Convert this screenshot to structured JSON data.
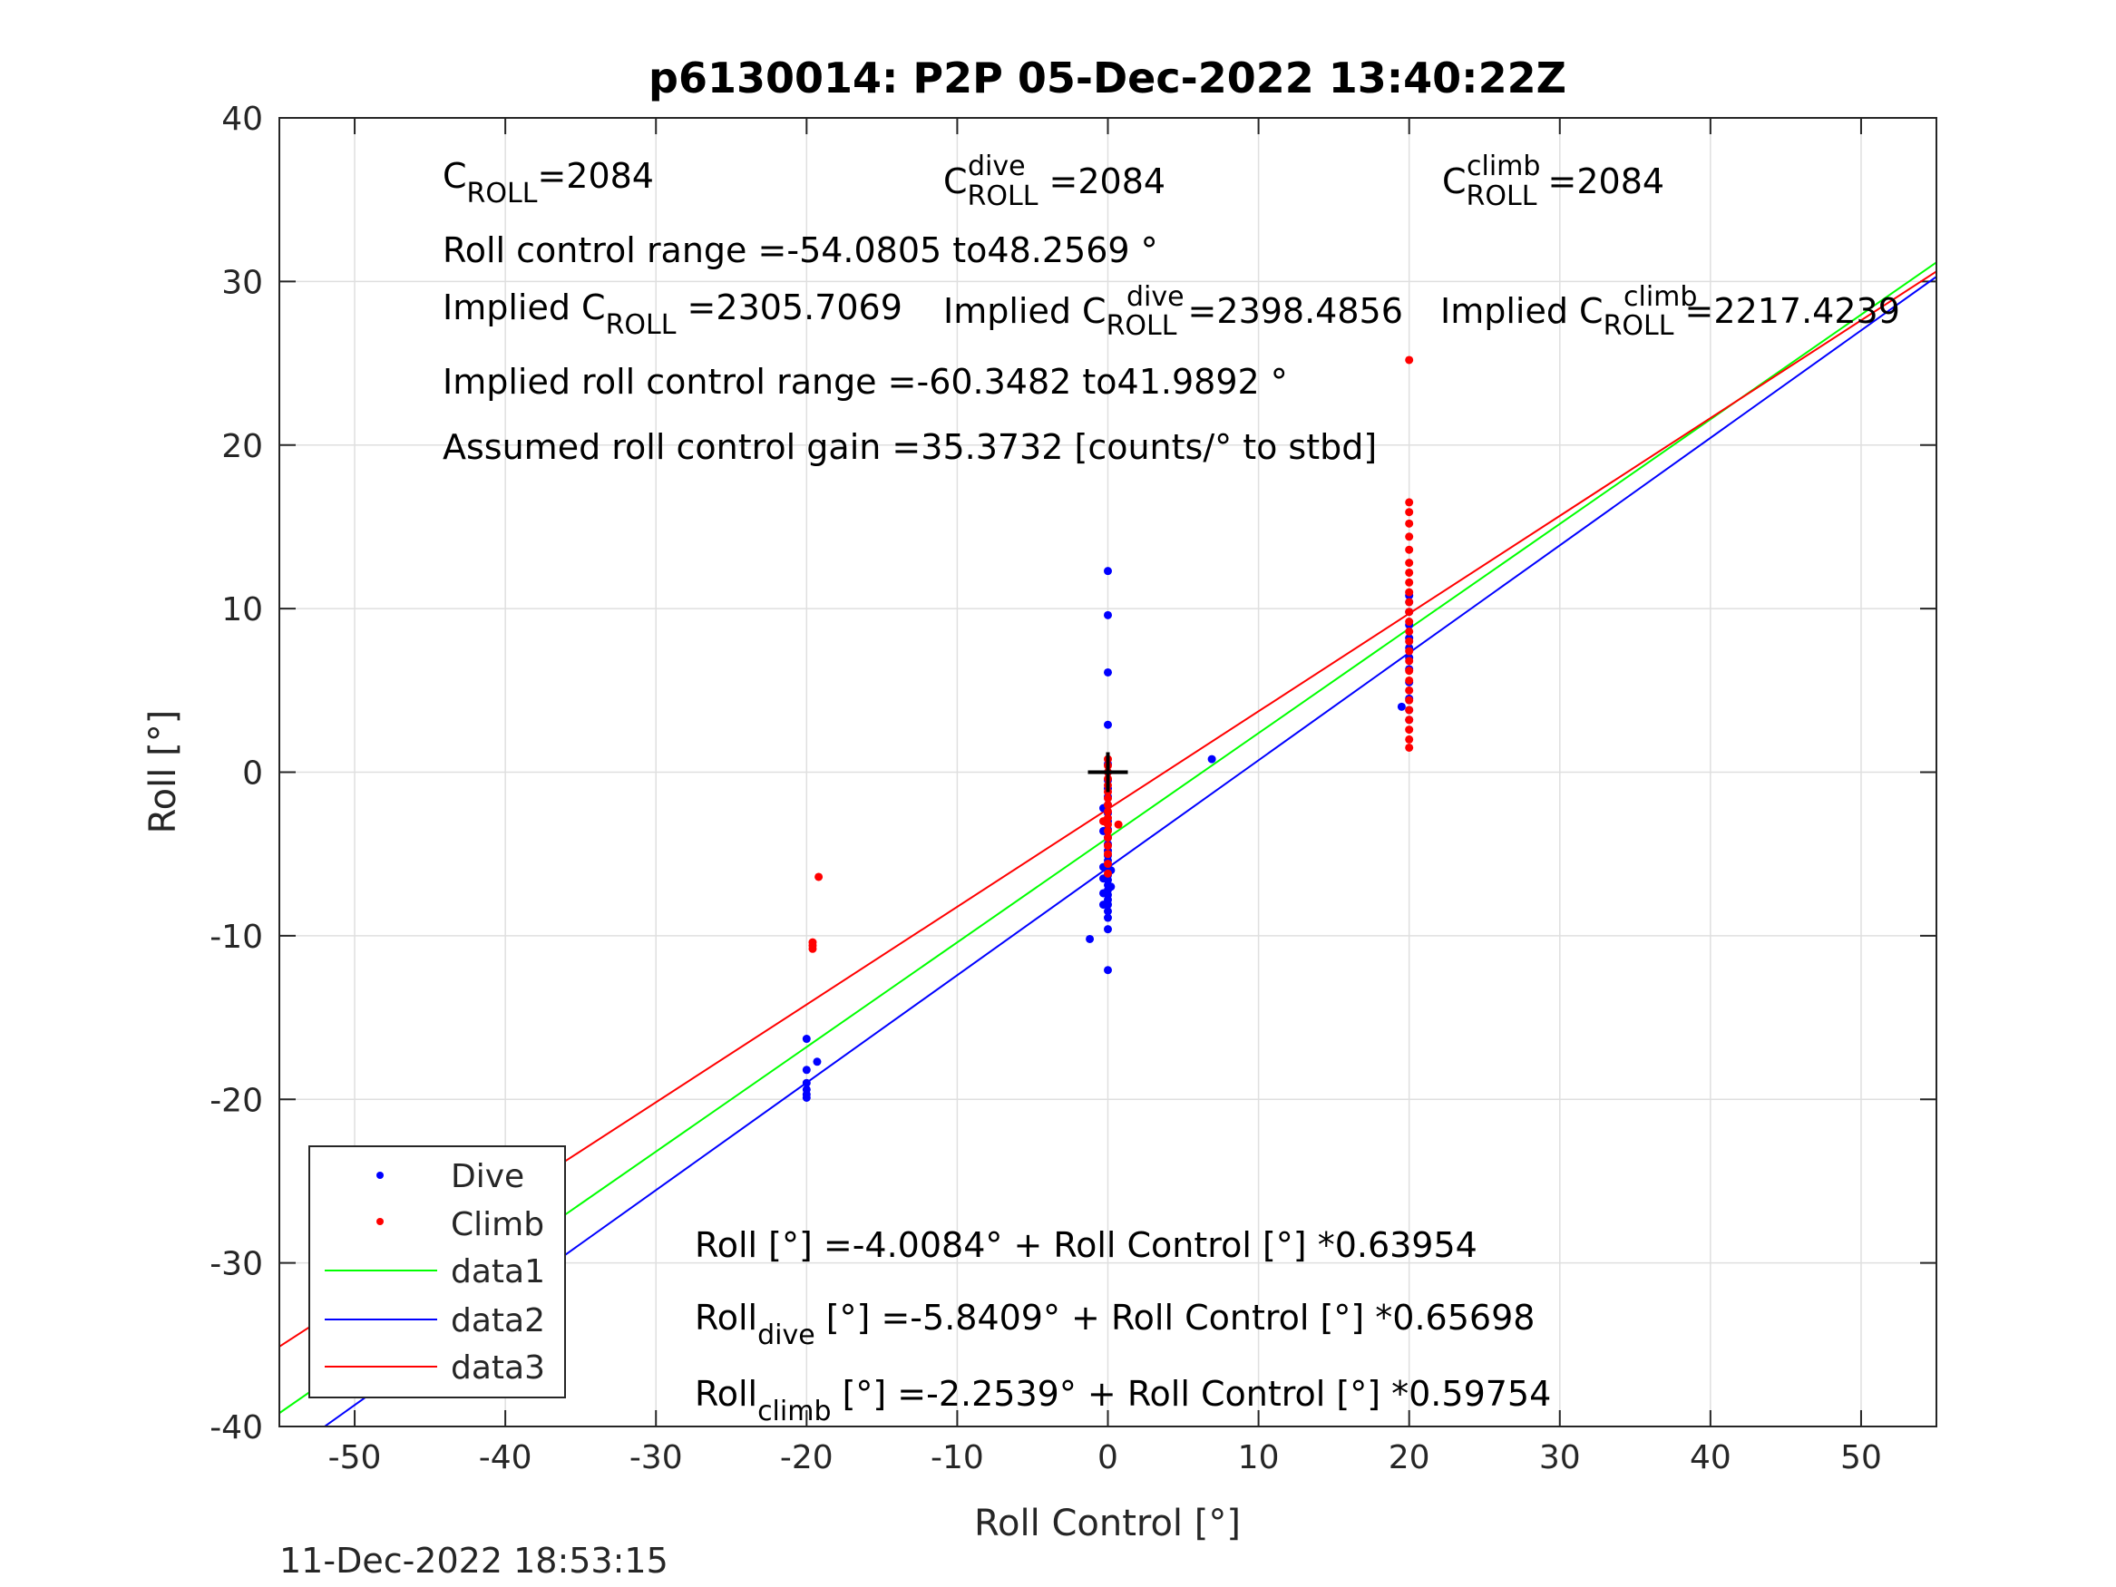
{
  "chart_data": {
    "type": "scatter",
    "title": "p6130014: P2P 05-Dec-2022 13:40:22Z",
    "xlabel": "Roll Control [°]",
    "ylabel": "Roll [°]",
    "xlim": [
      -55,
      55
    ],
    "ylim": [
      -40,
      40
    ],
    "xticks": [
      -50,
      -40,
      -30,
      -20,
      -10,
      0,
      10,
      20,
      30,
      40,
      50
    ],
    "yticks": [
      -40,
      -30,
      -20,
      -10,
      0,
      10,
      20,
      30,
      40
    ],
    "grid": true,
    "legend_position": "bottom-left",
    "legend": [
      "Dive",
      "Climb",
      "data1",
      "data2",
      "data3"
    ],
    "series": [
      {
        "name": "Dive",
        "mode": "markers",
        "color": "#0000ff",
        "points": [
          [
            -20,
            -16.3
          ],
          [
            -20,
            -18.2
          ],
          [
            -20,
            -19.0
          ],
          [
            -20,
            -19.4
          ],
          [
            -20,
            -19.7
          ],
          [
            -20,
            -19.9
          ],
          [
            -19.3,
            -17.7
          ],
          [
            -1.2,
            -10.2
          ],
          [
            0,
            -12.1
          ],
          [
            0,
            -9.6
          ],
          [
            0,
            -8.9
          ],
          [
            0,
            -8.5
          ],
          [
            0,
            -8.1
          ],
          [
            0,
            -7.8
          ],
          [
            0,
            -7.5
          ],
          [
            0,
            -7.2
          ],
          [
            0,
            -6.9
          ],
          [
            0,
            -6.6
          ],
          [
            0,
            -6.3
          ],
          [
            0,
            -6.0
          ],
          [
            0,
            -5.7
          ],
          [
            0,
            -5.4
          ],
          [
            0,
            -5.1
          ],
          [
            0,
            -4.8
          ],
          [
            0,
            -4.4
          ],
          [
            0,
            -4.0
          ],
          [
            0,
            -3.5
          ],
          [
            0,
            -3.0
          ],
          [
            0,
            -2.5
          ],
          [
            0,
            -2.0
          ],
          [
            0,
            -1.5
          ],
          [
            0,
            -1.0
          ],
          [
            0,
            -0.5
          ],
          [
            0,
            0.0
          ],
          [
            0,
            0.5
          ],
          [
            0,
            2.9
          ],
          [
            0,
            6.1
          ],
          [
            0,
            9.6
          ],
          [
            0,
            12.3
          ],
          [
            -0.3,
            -3.6
          ],
          [
            -0.3,
            -2.2
          ],
          [
            -0.3,
            -5.8
          ],
          [
            -0.3,
            -6.5
          ],
          [
            -0.3,
            -7.4
          ],
          [
            -0.3,
            -8.1
          ],
          [
            0.2,
            -6.0
          ],
          [
            0.2,
            -7.0
          ],
          [
            6.9,
            0.8
          ],
          [
            19.5,
            4.0
          ],
          [
            20,
            3.2
          ],
          [
            20,
            3.8
          ],
          [
            20,
            4.5
          ],
          [
            20,
            5.5
          ],
          [
            20,
            6.3
          ],
          [
            20,
            7.0
          ],
          [
            20,
            7.6
          ],
          [
            20,
            8.2
          ],
          [
            20,
            9.0
          ],
          [
            20,
            9.8
          ],
          [
            20,
            10.4
          ],
          [
            20,
            10.8
          ]
        ]
      },
      {
        "name": "Climb",
        "mode": "markers",
        "color": "#ff0000",
        "points": [
          [
            -19.2,
            -6.4
          ],
          [
            -19.6,
            -10.4
          ],
          [
            -19.6,
            -10.6
          ],
          [
            -19.6,
            -10.8
          ],
          [
            0,
            -6.2
          ],
          [
            0,
            -5.6
          ],
          [
            0,
            -5.0
          ],
          [
            0,
            -4.5
          ],
          [
            0,
            -4.0
          ],
          [
            0,
            -3.6
          ],
          [
            0,
            -3.2
          ],
          [
            0,
            -2.8
          ],
          [
            0,
            -2.4
          ],
          [
            0,
            -2.0
          ],
          [
            0,
            -1.6
          ],
          [
            0,
            -1.2
          ],
          [
            0,
            -0.8
          ],
          [
            0,
            -0.4
          ],
          [
            0,
            0.0
          ],
          [
            0,
            0.4
          ],
          [
            0,
            0.8
          ],
          [
            0.7,
            -3.2
          ],
          [
            -0.3,
            -3.0
          ],
          [
            20,
            1.5
          ],
          [
            20,
            2.0
          ],
          [
            20,
            2.6
          ],
          [
            20,
            3.2
          ],
          [
            20,
            3.8
          ],
          [
            20,
            4.4
          ],
          [
            20,
            5.0
          ],
          [
            20,
            5.6
          ],
          [
            20,
            6.2
          ],
          [
            20,
            6.8
          ],
          [
            20,
            7.4
          ],
          [
            20,
            8.0
          ],
          [
            20,
            8.6
          ],
          [
            20,
            9.2
          ],
          [
            20,
            9.8
          ],
          [
            20,
            10.4
          ],
          [
            20,
            11.0
          ],
          [
            20,
            11.6
          ],
          [
            20,
            12.2
          ],
          [
            20,
            12.8
          ],
          [
            20,
            13.6
          ],
          [
            20,
            14.4
          ],
          [
            20,
            15.2
          ],
          [
            20,
            15.9
          ],
          [
            20,
            16.5
          ],
          [
            20,
            25.2
          ]
        ]
      },
      {
        "name": "data1",
        "mode": "line",
        "color": "#00ff00",
        "intercept": -4.0084,
        "slope": 0.63954
      },
      {
        "name": "data2",
        "mode": "line",
        "color": "#0000ff",
        "intercept": -5.8409,
        "slope": 0.65698
      },
      {
        "name": "data3",
        "mode": "line",
        "color": "#ff0000",
        "intercept": -2.2539,
        "slope": 0.59754
      }
    ],
    "marker_cross": [
      0,
      0
    ],
    "annotations": {
      "c_roll": {
        "base": "C",
        "sub": "ROLL",
        "value": "=2084"
      },
      "c_roll_dive": {
        "base": "C",
        "sup": "dive",
        "sub": "ROLL",
        "value": " =2084"
      },
      "c_roll_climb": {
        "base": "C",
        "sup": "climb",
        "sub": "ROLL",
        "value": " =2084"
      },
      "roll_control_range": "Roll control range =-54.0805 to48.2569 °",
      "implied_c_roll": {
        "prefix": "Implied C",
        "sub": "ROLL",
        "value": " =2305.7069"
      },
      "implied_c_roll_dive": {
        "prefix": "Implied C",
        "sup": "dive",
        "sub": "ROLL",
        "value": " =2398.4856"
      },
      "implied_c_roll_climb": {
        "prefix": "Implied C",
        "sup": "climb",
        "sub": "ROLL",
        "value": " =2217.4239"
      },
      "implied_range": "Implied roll control range =-60.3482 to41.9892 °",
      "assumed_gain": "Assumed roll control gain =35.3732 [counts/° to stbd]",
      "fit_all": "Roll [°] =-4.0084° + Roll Control [°] *0.63954",
      "fit_dive": {
        "base": "Roll",
        "sub": "dive",
        "rest": " [°] =-5.8409° + Roll Control [°] *0.65698"
      },
      "fit_climb": {
        "base": "Roll",
        "sub": "climb",
        "rest": " [°] =-2.2539° + Roll Control [°] *0.59754"
      }
    },
    "timestamp": "11-Dec-2022 18:53:15"
  }
}
